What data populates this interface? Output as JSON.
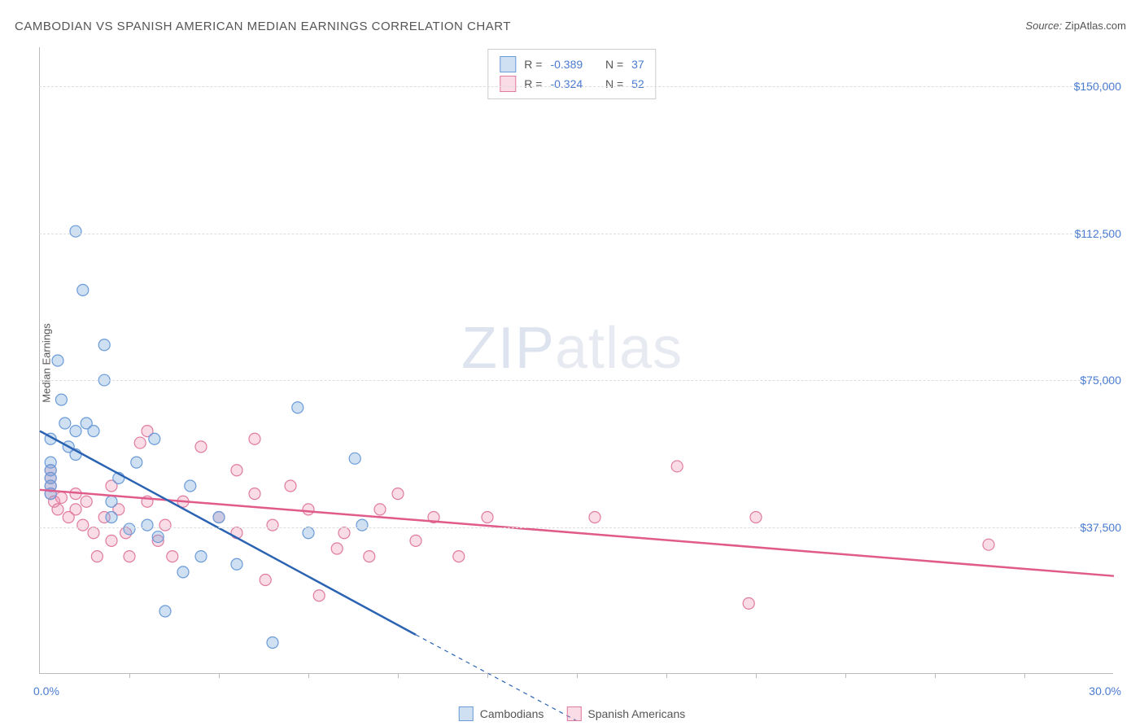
{
  "title": "CAMBODIAN VS SPANISH AMERICAN MEDIAN EARNINGS CORRELATION CHART",
  "source_label": "Source:",
  "source_value": "ZipAtlas.com",
  "watermark_zip": "ZIP",
  "watermark_atlas": "atlas",
  "ylabel": "Median Earnings",
  "chart": {
    "type": "scatter",
    "xlim": [
      0,
      30
    ],
    "ylim": [
      0,
      160000
    ],
    "x_start_label": "0.0%",
    "x_end_label": "30.0%",
    "x_tick_positions": [
      2.5,
      5.0,
      7.5,
      10.0,
      12.5,
      15.0,
      17.5,
      20.0,
      22.5,
      25.0,
      27.5
    ],
    "y_gridlines": [
      37500,
      75000,
      112500,
      150000
    ],
    "y_tick_labels": [
      "$37,500",
      "$75,000",
      "$112,500",
      "$150,000"
    ],
    "background_color": "#ffffff",
    "grid_color": "#dddddd",
    "axis_color": "#bbbbbb",
    "marker_radius": 7,
    "marker_stroke_width": 1.2,
    "series": [
      {
        "name": "Cambodians",
        "fill": "rgba(120,165,220,0.35)",
        "stroke": "#6a9bd8",
        "line_color": "#2b63b3",
        "line_width": 2.5,
        "trend": {
          "x1": 0,
          "y1": 62000,
          "x2": 10.5,
          "y2": 10000
        },
        "trend_dash": {
          "x1": 10.5,
          "y1": 10000,
          "x2": 15,
          "y2": -12000
        },
        "R": "-0.389",
        "N": "37",
        "points": [
          {
            "x": 0.3,
            "y": 60000
          },
          {
            "x": 0.3,
            "y": 54000
          },
          {
            "x": 0.3,
            "y": 52000
          },
          {
            "x": 0.3,
            "y": 50000
          },
          {
            "x": 0.3,
            "y": 48000
          },
          {
            "x": 0.3,
            "y": 46000
          },
          {
            "x": 0.5,
            "y": 80000
          },
          {
            "x": 0.6,
            "y": 70000
          },
          {
            "x": 0.7,
            "y": 64000
          },
          {
            "x": 0.8,
            "y": 58000
          },
          {
            "x": 1.0,
            "y": 113000
          },
          {
            "x": 1.0,
            "y": 62000
          },
          {
            "x": 1.0,
            "y": 56000
          },
          {
            "x": 1.2,
            "y": 98000
          },
          {
            "x": 1.3,
            "y": 64000
          },
          {
            "x": 1.5,
            "y": 62000
          },
          {
            "x": 1.8,
            "y": 84000
          },
          {
            "x": 1.8,
            "y": 75000
          },
          {
            "x": 2.0,
            "y": 44000
          },
          {
            "x": 2.0,
            "y": 40000
          },
          {
            "x": 2.2,
            "y": 50000
          },
          {
            "x": 2.5,
            "y": 37000
          },
          {
            "x": 2.7,
            "y": 54000
          },
          {
            "x": 3.0,
            "y": 38000
          },
          {
            "x": 3.2,
            "y": 60000
          },
          {
            "x": 3.3,
            "y": 35000
          },
          {
            "x": 3.5,
            "y": 16000
          },
          {
            "x": 4.0,
            "y": 26000
          },
          {
            "x": 4.2,
            "y": 48000
          },
          {
            "x": 4.5,
            "y": 30000
          },
          {
            "x": 5.0,
            "y": 40000
          },
          {
            "x": 5.5,
            "y": 28000
          },
          {
            "x": 6.5,
            "y": 8000
          },
          {
            "x": 7.2,
            "y": 68000
          },
          {
            "x": 7.5,
            "y": 36000
          },
          {
            "x": 8.8,
            "y": 55000
          },
          {
            "x": 9.0,
            "y": 38000
          }
        ]
      },
      {
        "name": "Spanish Americans",
        "fill": "rgba(235,140,170,0.30)",
        "stroke": "#e07ba0",
        "line_color": "#e05a8a",
        "line_width": 2.5,
        "trend": {
          "x1": 0,
          "y1": 47000,
          "x2": 30,
          "y2": 25000
        },
        "R": "-0.324",
        "N": "52",
        "points": [
          {
            "x": 0.3,
            "y": 52000
          },
          {
            "x": 0.3,
            "y": 50000
          },
          {
            "x": 0.3,
            "y": 48000
          },
          {
            "x": 0.3,
            "y": 46000
          },
          {
            "x": 0.4,
            "y": 44000
          },
          {
            "x": 0.5,
            "y": 42000
          },
          {
            "x": 0.6,
            "y": 45000
          },
          {
            "x": 0.8,
            "y": 40000
          },
          {
            "x": 1.0,
            "y": 46000
          },
          {
            "x": 1.0,
            "y": 42000
          },
          {
            "x": 1.2,
            "y": 38000
          },
          {
            "x": 1.3,
            "y": 44000
          },
          {
            "x": 1.5,
            "y": 36000
          },
          {
            "x": 1.6,
            "y": 30000
          },
          {
            "x": 1.8,
            "y": 40000
          },
          {
            "x": 2.0,
            "y": 48000
          },
          {
            "x": 2.0,
            "y": 34000
          },
          {
            "x": 2.2,
            "y": 42000
          },
          {
            "x": 2.4,
            "y": 36000
          },
          {
            "x": 2.5,
            "y": 30000
          },
          {
            "x": 2.8,
            "y": 59000
          },
          {
            "x": 3.0,
            "y": 62000
          },
          {
            "x": 3.0,
            "y": 44000
          },
          {
            "x": 3.3,
            "y": 34000
          },
          {
            "x": 3.5,
            "y": 38000
          },
          {
            "x": 3.7,
            "y": 30000
          },
          {
            "x": 4.0,
            "y": 44000
          },
          {
            "x": 4.5,
            "y": 58000
          },
          {
            "x": 5.0,
            "y": 40000
          },
          {
            "x": 5.5,
            "y": 52000
          },
          {
            "x": 5.5,
            "y": 36000
          },
          {
            "x": 6.0,
            "y": 60000
          },
          {
            "x": 6.0,
            "y": 46000
          },
          {
            "x": 6.3,
            "y": 24000
          },
          {
            "x": 6.5,
            "y": 38000
          },
          {
            "x": 7.0,
            "y": 48000
          },
          {
            "x": 7.5,
            "y": 42000
          },
          {
            "x": 7.8,
            "y": 20000
          },
          {
            "x": 8.3,
            "y": 32000
          },
          {
            "x": 8.5,
            "y": 36000
          },
          {
            "x": 9.2,
            "y": 30000
          },
          {
            "x": 9.5,
            "y": 42000
          },
          {
            "x": 10.0,
            "y": 46000
          },
          {
            "x": 10.5,
            "y": 34000
          },
          {
            "x": 11.0,
            "y": 40000
          },
          {
            "x": 11.7,
            "y": 30000
          },
          {
            "x": 12.5,
            "y": 40000
          },
          {
            "x": 15.5,
            "y": 40000
          },
          {
            "x": 17.8,
            "y": 53000
          },
          {
            "x": 19.8,
            "y": 18000
          },
          {
            "x": 20.0,
            "y": 40000
          },
          {
            "x": 26.5,
            "y": 33000
          }
        ]
      }
    ]
  },
  "legend": {
    "series1_label": "Cambodians",
    "series2_label": "Spanish Americans"
  },
  "stats": {
    "r_label": "R =",
    "n_label": "N ="
  }
}
